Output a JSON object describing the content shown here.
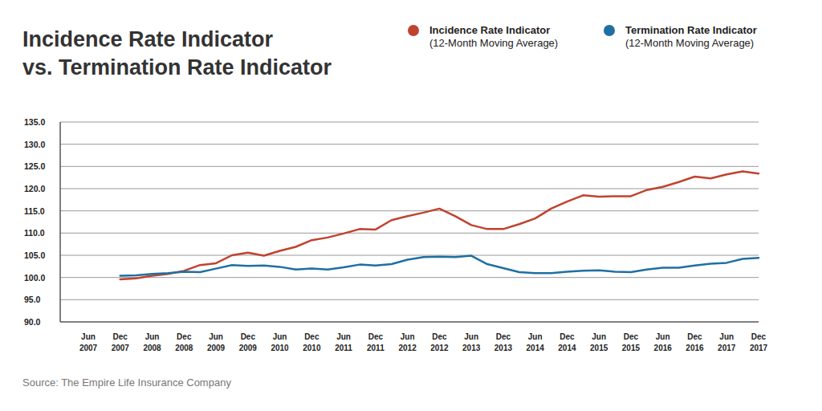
{
  "chart_data": {
    "type": "line",
    "title": "Incidence Rate Indicator\nvs. Termination Rate Indicator",
    "source": "Source: The Empire Life Insurance Company",
    "categories": [
      "Jun 2007",
      null,
      "Dec 2007",
      null,
      "Jun 2008",
      null,
      "Dec 2008",
      null,
      "Jun 2009",
      null,
      "Dec 2009",
      null,
      "Jun 2010",
      null,
      "Dec 2010",
      null,
      "Jun 2011",
      null,
      "Dec 2011",
      null,
      "Jun 2012",
      null,
      "Dec 2012",
      null,
      "Jun 2013",
      null,
      "Dec 2013",
      null,
      "Jun 2014",
      null,
      "Dec 2014",
      null,
      "Jun 2015",
      null,
      "Dec 2015",
      null,
      "Jun 2016",
      null,
      "Dec 2016",
      null,
      "Jun 2017",
      null,
      "Dec 2017"
    ],
    "series": [
      {
        "name": "Incidence Rate Indicator\n(12-Month Moving Average)",
        "color": "#c0432f",
        "values": [
          null,
          null,
          99.6,
          99.8,
          100.4,
          100.8,
          101.5,
          102.8,
          103.2,
          105.0,
          105.6,
          104.9,
          106.0,
          106.9,
          108.4,
          109.0,
          109.9,
          110.9,
          110.8,
          112.9,
          113.8,
          114.6,
          115.5,
          113.8,
          111.8,
          110.9,
          110.9,
          112.0,
          113.3,
          115.5,
          117.1,
          118.5,
          118.2,
          118.3,
          118.3,
          119.7,
          120.4,
          121.5,
          122.7,
          122.3,
          123.2,
          123.9,
          123.4
        ]
      },
      {
        "name": "Termination Rate Indicator\n(12-Month Moving Average)",
        "color": "#1f6fa3",
        "values": [
          null,
          null,
          100.4,
          100.5,
          100.8,
          101.0,
          101.3,
          101.2,
          102.0,
          102.8,
          102.6,
          102.7,
          102.4,
          101.8,
          102.0,
          101.8,
          102.3,
          102.9,
          102.7,
          103.0,
          104.0,
          104.6,
          104.7,
          104.6,
          104.9,
          103.0,
          102.1,
          101.2,
          101.0,
          101.0,
          101.3,
          101.5,
          101.6,
          101.3,
          101.2,
          101.8,
          102.2,
          102.2,
          102.7,
          103.1,
          103.3,
          104.2,
          104.4
        ]
      }
    ],
    "ylim": [
      90,
      135
    ],
    "yticks": [
      {
        "value": 90,
        "label": "90.0"
      },
      {
        "value": 95,
        "label": "95.0"
      },
      {
        "value": 100,
        "label": "100.0"
      },
      {
        "value": 105,
        "label": "105.0"
      },
      {
        "value": 110,
        "label": "110.0"
      },
      {
        "value": 115,
        "label": "115.0"
      },
      {
        "value": 120,
        "label": "120.0"
      },
      {
        "value": 125,
        "label": "125.0"
      },
      {
        "value": 130,
        "label": "130.0"
      },
      {
        "value": 135,
        "label": "135.0"
      }
    ],
    "grid": true,
    "legend": "top-right"
  }
}
